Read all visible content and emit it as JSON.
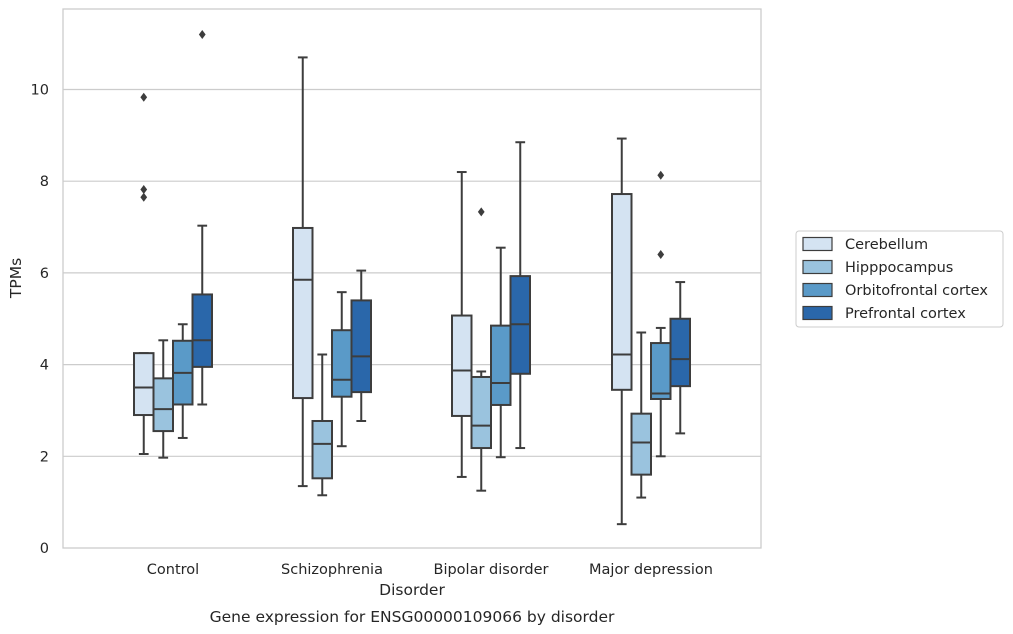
{
  "chart_data": {
    "type": "box",
    "xlabel": "Disorder",
    "ylabel": "TPMs",
    "caption": "Gene expression for ENSG00000109066 by disorder",
    "ylim": [
      0,
      11.5
    ],
    "yticks": [
      0,
      2,
      4,
      6,
      8,
      10
    ],
    "grid": "horizontal",
    "legend_position": "right",
    "categories": [
      "Control",
      "Schizophrenia",
      "Bipolar disorder",
      "Major depression"
    ],
    "series": [
      {
        "name": "Cerebellum",
        "color": "#d4e3f2",
        "boxes": [
          {
            "whisker_low": 2.05,
            "q1": 2.9,
            "median": 3.5,
            "q3": 4.25,
            "whisker_high": 4.25,
            "outliers": [
              7.65,
              7.82,
              9.83
            ]
          },
          {
            "whisker_low": 1.35,
            "q1": 3.27,
            "median": 5.85,
            "q3": 6.98,
            "whisker_high": 10.7,
            "outliers": []
          },
          {
            "whisker_low": 1.55,
            "q1": 2.88,
            "median": 3.87,
            "q3": 5.07,
            "whisker_high": 8.2,
            "outliers": []
          },
          {
            "whisker_low": 0.52,
            "q1": 3.45,
            "median": 4.22,
            "q3": 7.72,
            "whisker_high": 8.93,
            "outliers": []
          }
        ]
      },
      {
        "name": "Hipppocampus",
        "color": "#9ac3de",
        "boxes": [
          {
            "whisker_low": 1.97,
            "q1": 2.55,
            "median": 3.03,
            "q3": 3.7,
            "whisker_high": 4.53,
            "outliers": []
          },
          {
            "whisker_low": 1.15,
            "q1": 1.52,
            "median": 2.27,
            "q3": 2.77,
            "whisker_high": 4.22,
            "outliers": []
          },
          {
            "whisker_low": 1.25,
            "q1": 2.18,
            "median": 2.67,
            "q3": 3.73,
            "whisker_high": 3.85,
            "outliers": [
              7.33
            ]
          },
          {
            "whisker_low": 1.1,
            "q1": 1.6,
            "median": 2.3,
            "q3": 2.93,
            "whisker_high": 4.7,
            "outliers": []
          }
        ]
      },
      {
        "name": "Orbitofrontal cortex",
        "color": "#5a9ac8",
        "boxes": [
          {
            "whisker_low": 2.4,
            "q1": 3.13,
            "median": 3.82,
            "q3": 4.52,
            "whisker_high": 4.88,
            "outliers": []
          },
          {
            "whisker_low": 2.22,
            "q1": 3.3,
            "median": 3.67,
            "q3": 4.75,
            "whisker_high": 5.58,
            "outliers": []
          },
          {
            "whisker_low": 1.98,
            "q1": 3.12,
            "median": 3.6,
            "q3": 4.85,
            "whisker_high": 6.55,
            "outliers": []
          },
          {
            "whisker_low": 2.0,
            "q1": 3.25,
            "median": 3.37,
            "q3": 4.47,
            "whisker_high": 4.8,
            "outliers": [
              6.4,
              8.13
            ]
          }
        ]
      },
      {
        "name": "Prefrontal cortex",
        "color": "#2a67aa",
        "boxes": [
          {
            "whisker_low": 3.13,
            "q1": 3.95,
            "median": 4.53,
            "q3": 5.53,
            "whisker_high": 7.03,
            "outliers": [
              11.2
            ]
          },
          {
            "whisker_low": 2.77,
            "q1": 3.4,
            "median": 4.18,
            "q3": 5.4,
            "whisker_high": 6.05,
            "outliers": []
          },
          {
            "whisker_low": 2.18,
            "q1": 3.8,
            "median": 4.88,
            "q3": 5.93,
            "whisker_high": 8.85,
            "outliers": []
          },
          {
            "whisker_low": 2.5,
            "q1": 3.53,
            "median": 4.12,
            "q3": 5.0,
            "whisker_high": 5.8,
            "outliers": []
          }
        ]
      }
    ]
  }
}
